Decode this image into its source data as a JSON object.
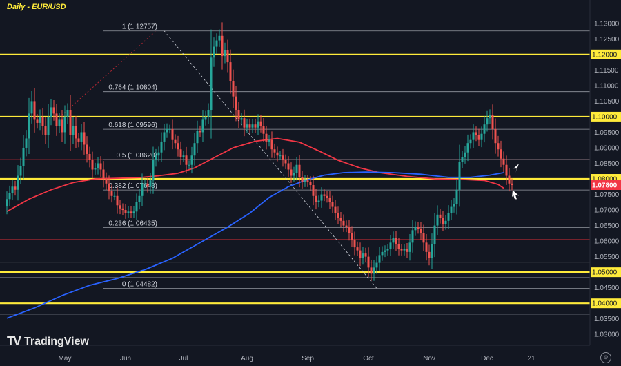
{
  "title": "Daily - EUR/USD",
  "brand": {
    "logo": "TV",
    "name": "TradingView"
  },
  "chart_data": {
    "type": "candlestick",
    "instrument": "EUR/USD",
    "timeframe": "Daily",
    "ylim": [
      1.0265,
      1.1375
    ],
    "y_ticks": [
      "1.03000",
      "1.03500",
      "1.04000",
      "1.04500",
      "1.05000",
      "1.05500",
      "1.06000",
      "1.06500",
      "1.07000",
      "1.07500",
      "1.08000",
      "1.08500",
      "1.09000",
      "1.09500",
      "1.10000",
      "1.10500",
      "1.11000",
      "1.11500",
      "1.12000",
      "1.12500",
      "1.13000"
    ],
    "x_ticks": [
      "May",
      "Jun",
      "Jul",
      "Aug",
      "Sep",
      "Oct",
      "Nov",
      "Dec",
      "21"
    ],
    "x_tick_day_index": [
      21,
      43,
      64,
      87,
      109,
      131,
      153,
      174,
      190
    ],
    "total_days": 198,
    "yellow_levels": [
      1.12,
      1.1,
      1.08,
      1.05,
      1.04
    ],
    "yellow_labels": [
      "1.12000",
      "1.10000",
      "1.08000",
      "1.05000",
      "1.04000"
    ],
    "red_levels": [
      1.0862,
      1.0605
    ],
    "thin_levels": [
      1.0532,
      1.0483,
      1.0365
    ],
    "fibonacci": {
      "levels": [
        {
          "label": "1 (1.12757)",
          "value": 1.12757
        },
        {
          "label": "0.764 (1.10804)",
          "value": 1.10804
        },
        {
          "label": "0.618 (1.09596)",
          "value": 1.09596
        },
        {
          "label": "0.5 (1.08620)",
          "value": 1.0862
        },
        {
          "label": "0.382 (1.07643)",
          "value": 1.07643
        },
        {
          "label": "0.236 (1.06435)",
          "value": 1.06435
        },
        {
          "label": "0 (1.04482)",
          "value": 1.04482
        }
      ]
    },
    "current_price": {
      "label": "1.07800",
      "value": 1.078
    },
    "colors": {
      "bg": "#131722",
      "up": "#26a69a",
      "down": "#ef5350",
      "yellow": "#ffeb3b",
      "red_line": "#b22833",
      "ma_red": "#f23645",
      "ma_blue": "#2962ff",
      "grid_text": "#b2b5be",
      "price_tag": "#f23645"
    },
    "series": [
      {
        "name": "",
        "type": "moving-average",
        "color": "#f23645",
        "points": [
          [
            0,
            1.0695
          ],
          [
            8,
            1.0735
          ],
          [
            16,
            1.0765
          ],
          [
            24,
            1.0788
          ],
          [
            32,
            1.08
          ],
          [
            40,
            1.0802
          ],
          [
            48,
            1.0804
          ],
          [
            55,
            1.081
          ],
          [
            62,
            1.0818
          ],
          [
            68,
            1.0835
          ],
          [
            75,
            1.0868
          ],
          [
            82,
            1.09
          ],
          [
            90,
            1.0921
          ],
          [
            98,
            1.093
          ],
          [
            106,
            1.0918
          ],
          [
            113,
            1.089
          ],
          [
            120,
            1.086
          ],
          [
            128,
            1.0835
          ],
          [
            135,
            1.082
          ],
          [
            145,
            1.0808
          ],
          [
            155,
            1.08
          ],
          [
            165,
            1.0798
          ],
          [
            173,
            1.0795
          ],
          [
            178,
            1.0782
          ],
          [
            180,
            1.077
          ]
        ]
      },
      {
        "name": "",
        "type": "moving-average",
        "color": "#2962ff",
        "points": [
          [
            0,
            1.0352
          ],
          [
            10,
            1.0385
          ],
          [
            20,
            1.0425
          ],
          [
            30,
            1.0458
          ],
          [
            40,
            1.048
          ],
          [
            50,
            1.0508
          ],
          [
            60,
            1.0545
          ],
          [
            70,
            1.0595
          ],
          [
            80,
            1.0645
          ],
          [
            88,
            1.069
          ],
          [
            95,
            1.074
          ],
          [
            102,
            1.0775
          ],
          [
            108,
            1.0795
          ],
          [
            115,
            1.0812
          ],
          [
            122,
            1.082
          ],
          [
            130,
            1.0822
          ],
          [
            140,
            1.082
          ],
          [
            150,
            1.0815
          ],
          [
            160,
            1.0805
          ],
          [
            168,
            1.0805
          ],
          [
            175,
            1.0812
          ],
          [
            180,
            1.082
          ]
        ]
      }
    ],
    "candles_close": [
      1.0735,
      1.0755,
      1.0775,
      1.0765,
      1.081,
      1.084,
      1.09,
      1.093,
      1.101,
      1.105,
      1.099,
      1.098,
      1.1,
      1.097,
      1.094,
      1.1,
      1.103,
      1.101,
      1.097,
      1.099,
      1.095,
      1.1,
      1.102,
      1.094,
      1.097,
      1.093,
      1.092,
      1.095,
      1.091,
      1.088,
      1.086,
      1.083,
      1.0835,
      1.085,
      1.083,
      1.08,
      1.0785,
      1.076,
      1.0745,
      1.0745,
      1.0715,
      1.0705,
      1.07,
      1.069,
      1.0695,
      1.069,
      1.0695,
      1.0725,
      1.0745,
      1.0785,
      1.0785,
      1.0775,
      1.0795,
      1.086,
      1.0875,
      1.0885,
      1.092,
      1.095,
      1.096,
      1.096,
      1.0925,
      1.0915,
      1.0895,
      1.087,
      1.0875,
      1.0845,
      1.0845,
      1.0875,
      1.0915,
      1.0955,
      1.095,
      1.099,
      1.1,
      1.102,
      1.119,
      1.1225,
      1.1245,
      1.126,
      1.1195,
      1.1215,
      1.1175,
      1.1115,
      1.1065,
      1.102,
      1.099,
      1.0995,
      1.0965,
      1.0975,
      1.0965,
      1.0975,
      1.0965,
      1.0985,
      1.097,
      1.0945,
      1.092,
      1.0925,
      1.0895,
      1.0885,
      1.0875,
      1.0875,
      1.086,
      1.085,
      1.083,
      1.081,
      1.082,
      1.0845,
      1.0805,
      1.079,
      1.0795,
      1.079,
      1.078,
      1.0745,
      1.0725,
      1.073,
      1.075,
      1.0745,
      1.074,
      1.0725,
      1.071,
      1.069,
      1.0675,
      1.0665,
      1.065,
      1.0645,
      1.0625,
      1.0605,
      1.058,
      1.057,
      1.0545,
      1.056,
      1.055,
      1.0515,
      1.0495,
      1.0515,
      1.053,
      1.0555,
      1.0565,
      1.057,
      1.0575,
      1.0595,
      1.061,
      1.059,
      1.0575,
      1.057,
      1.0575,
      1.0565,
      1.0595,
      1.0635,
      1.0645,
      1.064,
      1.0625,
      1.0595,
      1.0565,
      1.0545,
      1.059,
      1.065,
      1.0685,
      1.0675,
      1.0655,
      1.0665,
      1.069,
      1.071,
      1.072,
      1.0765,
      1.0855,
      1.087,
      1.0885,
      1.0915,
      1.0925,
      1.095,
      1.094,
      1.0925,
      1.0945,
      1.0975,
      1.0995,
      1.1005,
      1.096,
      1.0915,
      1.0895,
      1.0865,
      1.0845,
      1.081,
      1.0785,
      1.078
    ],
    "candles_open": [
      1.0711,
      1.0735,
      1.0755,
      1.0775,
      1.0765,
      1.081,
      1.084,
      1.09,
      1.093,
      1.101,
      1.105,
      1.099,
      1.098,
      1.1,
      1.097,
      1.094,
      1.1,
      1.103,
      1.101,
      1.097,
      1.099,
      1.095,
      1.1,
      1.102,
      1.094,
      1.097,
      1.093,
      1.092,
      1.095,
      1.091,
      1.088,
      1.086,
      1.083,
      1.0835,
      1.085,
      1.083,
      1.08,
      1.0785,
      1.076,
      1.0745,
      1.0745,
      1.0715,
      1.0705,
      1.07,
      1.069,
      1.0695,
      1.069,
      1.0695,
      1.0725,
      1.0745,
      1.0785,
      1.0785,
      1.0775,
      1.0795,
      1.086,
      1.0875,
      1.0885,
      1.092,
      1.095,
      1.096,
      1.096,
      1.0925,
      1.0915,
      1.0895,
      1.087,
      1.0875,
      1.0845,
      1.0845,
      1.0875,
      1.0915,
      1.0955,
      1.095,
      1.099,
      1.1,
      1.102,
      1.119,
      1.1225,
      1.1245,
      1.126,
      1.1195,
      1.1215,
      1.1175,
      1.1115,
      1.1065,
      1.102,
      1.099,
      1.0995,
      1.0965,
      1.0975,
      1.0965,
      1.0975,
      1.0965,
      1.0985,
      1.097,
      1.0945,
      1.092,
      1.0925,
      1.0895,
      1.0885,
      1.0875,
      1.0875,
      1.086,
      1.085,
      1.083,
      1.081,
      1.082,
      1.0845,
      1.0805,
      1.079,
      1.0795,
      1.079,
      1.078,
      1.0745,
      1.0725,
      1.073,
      1.075,
      1.0745,
      1.074,
      1.0725,
      1.071,
      1.069,
      1.0675,
      1.0665,
      1.065,
      1.0645,
      1.0625,
      1.0605,
      1.058,
      1.057,
      1.0545,
      1.056,
      1.055,
      1.0515,
      1.0495,
      1.0515,
      1.053,
      1.0555,
      1.0565,
      1.057,
      1.0575,
      1.0595,
      1.061,
      1.059,
      1.0575,
      1.057,
      1.0575,
      1.0565,
      1.0595,
      1.0635,
      1.0645,
      1.064,
      1.0625,
      1.0595,
      1.0565,
      1.0545,
      1.059,
      1.065,
      1.0685,
      1.0675,
      1.0655,
      1.0665,
      1.069,
      1.071,
      1.072,
      1.0765,
      1.0855,
      1.087,
      1.0885,
      1.0915,
      1.0925,
      1.095,
      1.094,
      1.0925,
      1.0945,
      1.0975,
      1.0995,
      1.1005,
      1.096,
      1.0915,
      1.0895,
      1.0865,
      1.0845,
      1.081,
      1.0785
    ]
  }
}
